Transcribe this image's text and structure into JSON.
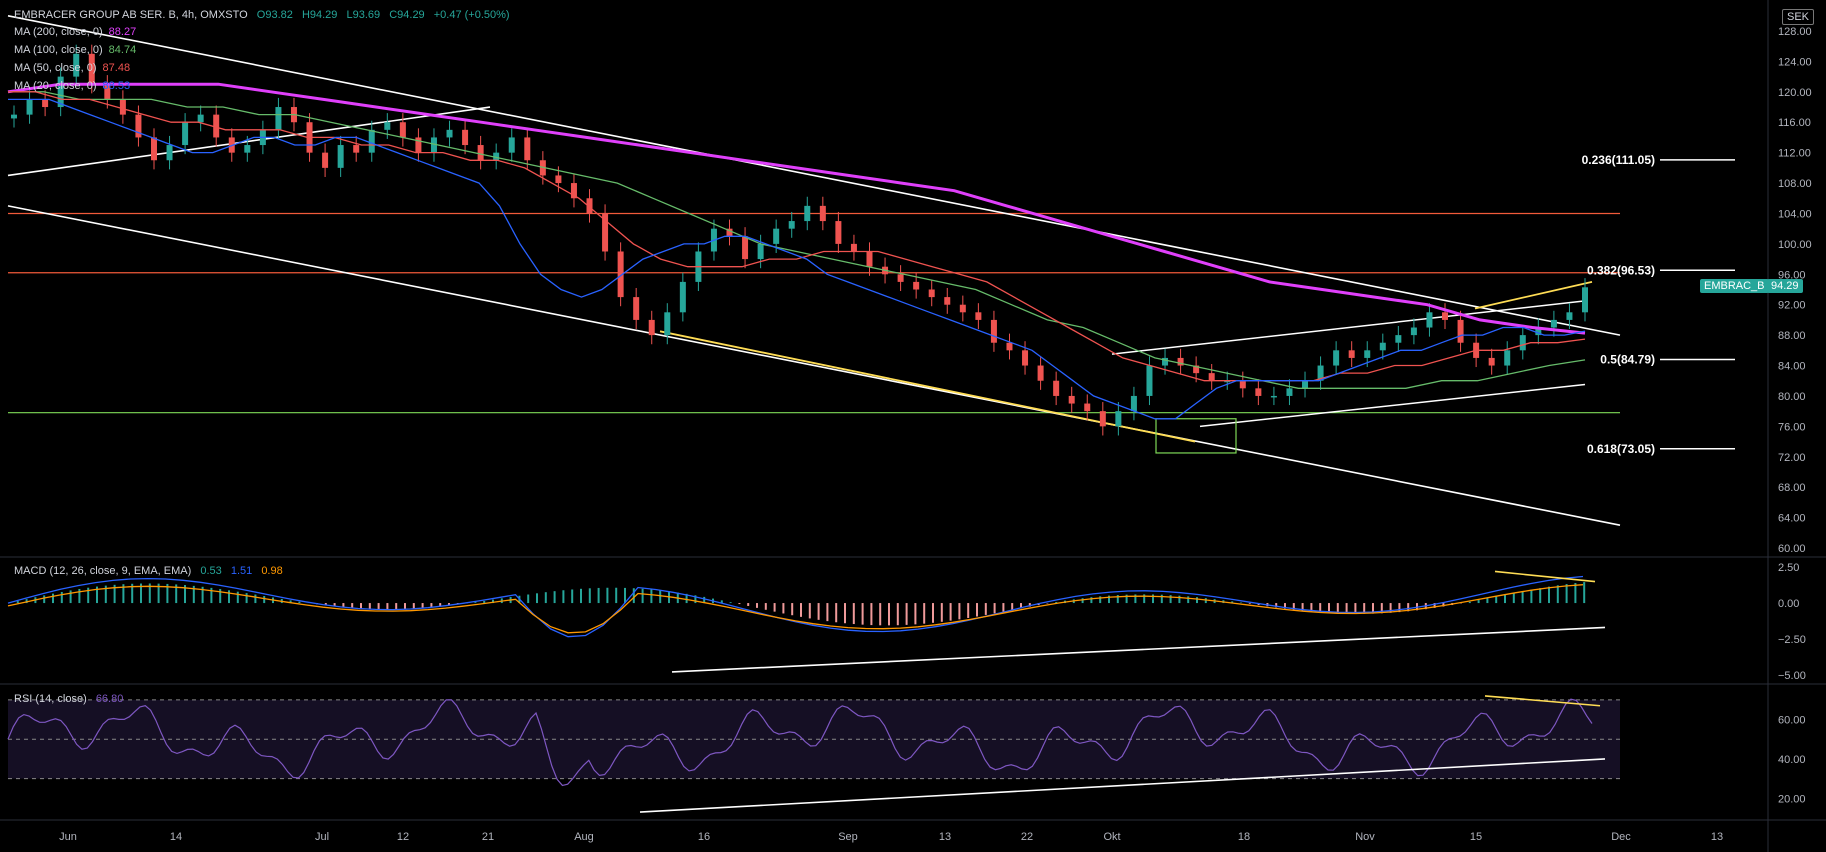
{
  "header": {
    "symbol": "EMBRACER GROUP AB SER. B, 4h, OMXSTO",
    "open": "O93.82",
    "high": "H94.29",
    "low": "L93.69",
    "close": "C94.29",
    "change": "+0.47 (+0.50%)",
    "currency": "SEK"
  },
  "ma_legend": [
    {
      "label": "MA (200, close, 0)",
      "value": "88.27",
      "color": "#e040fb"
    },
    {
      "label": "MA (100, close, 0)",
      "value": "84.74",
      "color": "#66bb6a"
    },
    {
      "label": "MA (50, close, 0)",
      "value": "87.48",
      "color": "#ef5350"
    },
    {
      "label": "MA (20, close, 0)",
      "value": "88.53",
      "color": "#2962ff"
    }
  ],
  "macd_legend": {
    "label": "MACD (12, 26, close, 9, EMA, EMA)",
    "macd": "0.53",
    "signal": "1.51",
    "hist": "0.98"
  },
  "rsi_legend": {
    "label": "RSI (14, close)",
    "value": "66.80"
  },
  "price_tag": {
    "label": "EMBRAC_B",
    "value": "94.29",
    "color": "#26a69a"
  },
  "chart_data": {
    "type": "candlestick",
    "price_axis_ticks": [
      "128.00",
      "124.00",
      "120.00",
      "116.00",
      "112.00",
      "108.00",
      "104.00",
      "100.00",
      "96.00",
      "92.00",
      "88.00",
      "84.00",
      "80.00",
      "76.00",
      "72.00",
      "68.00",
      "64.00",
      "60.00"
    ],
    "ylim": [
      60,
      130
    ],
    "time_axis_ticks": [
      "Jun",
      "14",
      "Jul",
      "12",
      "21",
      "Aug",
      "16",
      "Sep",
      "13",
      "22",
      "Okt",
      "18",
      "Nov",
      "15",
      "Dec",
      "13"
    ],
    "horizontal_levels": [
      {
        "price": 104.0,
        "color": "#f15a3a"
      },
      {
        "price": 96.2,
        "color": "#f15a3a"
      },
      {
        "price": 77.8,
        "color": "#7ed957"
      }
    ],
    "fib_levels": [
      {
        "label": "0.236(111.05)",
        "price": 111.05
      },
      {
        "label": "0.382(96.53)",
        "price": 96.53
      },
      {
        "label": "0.5(84.79)",
        "price": 84.79
      },
      {
        "label": "0.618(73.05)",
        "price": 73.05
      }
    ],
    "close_series": [
      117,
      119,
      118,
      122,
      125,
      121,
      119,
      117,
      114,
      111,
      113,
      116,
      117,
      114,
      112,
      113,
      115,
      118,
      116,
      112,
      110,
      113,
      112,
      115,
      116,
      114,
      112,
      114,
      115,
      113,
      111,
      112,
      114,
      111,
      109,
      108,
      106,
      104,
      99,
      93,
      90,
      88,
      91,
      95,
      99,
      102,
      101,
      98,
      100,
      102,
      103,
      105,
      103,
      100,
      99,
      97,
      96,
      95,
      94,
      93,
      92,
      91,
      90,
      87,
      86,
      84,
      82,
      80,
      79,
      78,
      76,
      78,
      80,
      84,
      85,
      84,
      83,
      82,
      82,
      81,
      80,
      80,
      81,
      82,
      84,
      86,
      85,
      86,
      87,
      88,
      89,
      91,
      90,
      87,
      85,
      84,
      86,
      88,
      89,
      90,
      91,
      94.29
    ],
    "ma20": [
      119,
      119,
      119,
      118,
      117,
      116,
      115,
      114,
      113,
      112,
      112,
      113,
      114,
      114,
      113,
      113,
      114,
      114,
      113,
      112,
      111,
      110,
      109,
      108,
      105,
      100,
      96,
      94,
      93,
      94,
      96,
      98,
      99,
      100,
      100,
      101,
      101,
      100,
      99,
      98,
      96,
      95,
      94,
      93,
      92,
      91,
      90,
      89,
      88,
      87,
      86,
      84,
      82,
      80,
      79,
      78,
      77,
      77,
      79,
      81,
      82,
      82,
      82,
      82,
      82,
      83,
      84,
      85,
      86,
      86,
      87,
      88,
      88,
      89,
      89,
      88,
      88,
      88.53
    ],
    "ma50": [
      120,
      120,
      119,
      119,
      118,
      117,
      116,
      116,
      115,
      115,
      115,
      114,
      114,
      113,
      113,
      112,
      112,
      111,
      111,
      110,
      108,
      106,
      103,
      100,
      98,
      97,
      97,
      97,
      98,
      98,
      99,
      99,
      99,
      98,
      97,
      96,
      95,
      93,
      91,
      89,
      87,
      85,
      84,
      83,
      82,
      82,
      82,
      82,
      82,
      83,
      83,
      84,
      84,
      85,
      86,
      86,
      87,
      87,
      87.48
    ],
    "ma100": [
      120,
      120,
      119,
      119,
      119,
      118,
      118,
      117,
      117,
      116,
      115,
      114,
      113,
      112,
      111,
      110,
      109,
      108,
      106,
      104,
      102,
      100,
      99,
      98,
      97,
      96,
      95,
      94,
      92,
      90,
      89,
      87,
      85,
      84,
      83,
      82,
      81,
      81,
      81,
      81,
      82,
      82,
      83,
      84,
      84.74
    ],
    "ma200": [
      120,
      121,
      121,
      121,
      121,
      120,
      119,
      118,
      117,
      116,
      115,
      114,
      113,
      112,
      111,
      110,
      109,
      108,
      107,
      105,
      103,
      101,
      99,
      97,
      95,
      94,
      93,
      92,
      90,
      89,
      88.27
    ],
    "macd": {
      "ticks": [
        "2.50",
        "0.00",
        "−2.50",
        "−5.00"
      ],
      "ylim": [
        -5.5,
        3
      ]
    },
    "rsi": {
      "ticks": [
        "60.00",
        "40.00",
        "20.00"
      ],
      "ylim": [
        10,
        75
      ],
      "bands": [
        70,
        50,
        30
      ]
    }
  }
}
